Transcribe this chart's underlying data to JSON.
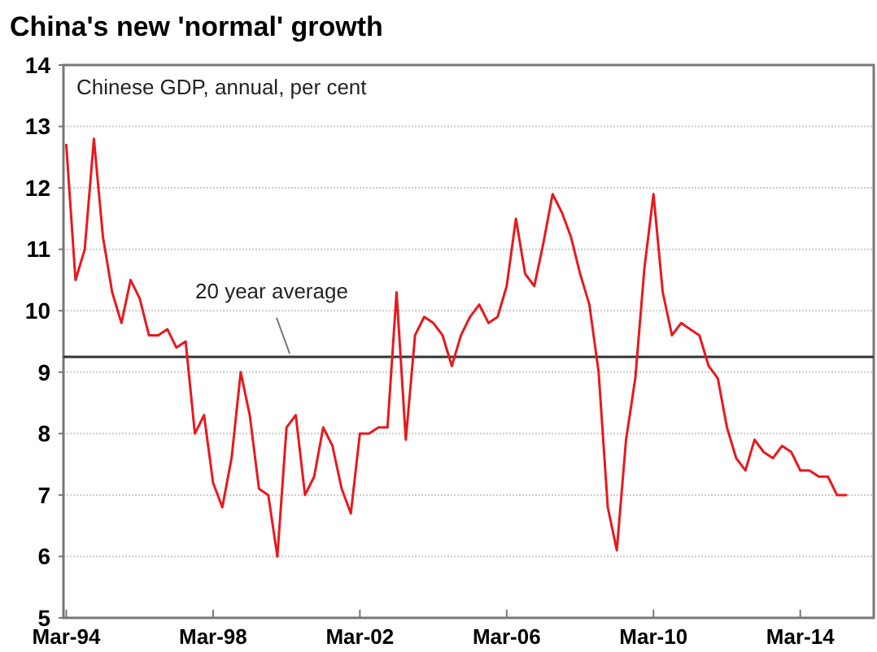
{
  "chart_data": {
    "type": "line",
    "title": "China's new 'normal' growth",
    "subtitle": "Chinese GDP, annual, per cent",
    "x": [
      "1994-03",
      "1994-06",
      "1994-09",
      "1994-12",
      "1995-03",
      "1995-06",
      "1995-09",
      "1995-12",
      "1996-03",
      "1996-06",
      "1996-09",
      "1996-12",
      "1997-03",
      "1997-06",
      "1997-09",
      "1997-12",
      "1998-03",
      "1998-06",
      "1998-09",
      "1998-12",
      "1999-03",
      "1999-06",
      "1999-09",
      "1999-12",
      "2000-03",
      "2000-06",
      "2000-09",
      "2000-12",
      "2001-03",
      "2001-06",
      "2001-09",
      "2001-12",
      "2002-03",
      "2002-06",
      "2002-09",
      "2002-12",
      "2003-03",
      "2003-06",
      "2003-09",
      "2003-12",
      "2004-03",
      "2004-06",
      "2004-09",
      "2004-12",
      "2005-03",
      "2005-06",
      "2005-09",
      "2005-12",
      "2006-03",
      "2006-06",
      "2006-09",
      "2006-12",
      "2007-03",
      "2007-06",
      "2007-09",
      "2007-12",
      "2008-03",
      "2008-06",
      "2008-09",
      "2008-12",
      "2009-03",
      "2009-06",
      "2009-09",
      "2009-12",
      "2010-03",
      "2010-06",
      "2010-09",
      "2010-12",
      "2011-03",
      "2011-06",
      "2011-09",
      "2011-12",
      "2012-03",
      "2012-06",
      "2012-09",
      "2012-12",
      "2013-03",
      "2013-06",
      "2013-09",
      "2013-12",
      "2014-03",
      "2014-06",
      "2014-09",
      "2014-12",
      "2015-03",
      "2015-06"
    ],
    "series": [
      {
        "color": "#e8191e",
        "values": [
          12.7,
          10.5,
          11.0,
          12.8,
          11.2,
          10.3,
          9.8,
          10.5,
          10.2,
          9.6,
          9.6,
          9.7,
          9.4,
          9.5,
          8.0,
          8.3,
          7.2,
          6.8,
          7.6,
          9.0,
          8.3,
          7.1,
          7.0,
          6.0,
          8.1,
          8.3,
          7.0,
          7.3,
          8.1,
          7.8,
          7.1,
          6.7,
          8.0,
          8.0,
          8.1,
          8.1,
          10.3,
          7.9,
          9.6,
          9.9,
          9.8,
          9.6,
          9.1,
          9.6,
          9.9,
          10.1,
          9.8,
          9.9,
          10.4,
          11.5,
          10.6,
          10.4,
          11.1,
          11.9,
          11.6,
          11.2,
          10.6,
          10.1,
          9.0,
          6.8,
          6.1,
          7.9,
          8.9,
          10.7,
          11.9,
          10.3,
          9.6,
          9.8,
          9.7,
          9.6,
          9.1,
          8.9,
          8.1,
          7.6,
          7.4,
          7.9,
          7.7,
          7.6,
          7.8,
          7.7,
          7.4,
          7.4,
          7.3,
          7.3,
          7.0,
          7.0
        ]
      }
    ],
    "xlim": [
      "1994-02",
      "2016-03"
    ],
    "xticks": [
      {
        "value": "1994-03",
        "label": "Mar-94"
      },
      {
        "value": "1998-03",
        "label": "Mar-98"
      },
      {
        "value": "2002-03",
        "label": "Mar-02"
      },
      {
        "value": "2006-03",
        "label": "Mar-06"
      },
      {
        "value": "2010-03",
        "label": "Mar-10"
      },
      {
        "value": "2014-03",
        "label": "Mar-14"
      }
    ],
    "ylim": [
      5,
      14
    ],
    "yticks": [
      5,
      6,
      7,
      8,
      9,
      10,
      11,
      12,
      13,
      14
    ],
    "ref_lines": [
      {
        "axis": "y",
        "value": 9.25,
        "label": "20 year average",
        "color": "#333333"
      }
    ],
    "grid": "y",
    "marker": "none",
    "line_style": "solid"
  }
}
